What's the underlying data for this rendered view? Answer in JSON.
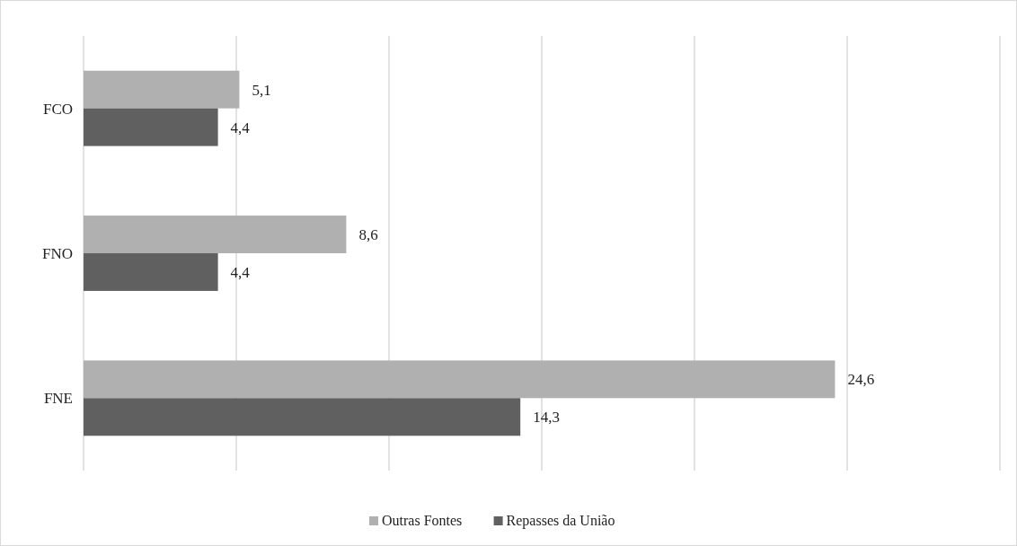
{
  "chart_data": {
    "type": "bar",
    "orientation": "horizontal",
    "categories": [
      "FCO",
      "FNO",
      "FNE"
    ],
    "series": [
      {
        "name": "Outras Fontes",
        "color": "#b0b0b0",
        "values": [
          5.1,
          8.6,
          24.6
        ],
        "value_labels": [
          "5,1",
          "8,6",
          "24,6"
        ]
      },
      {
        "name": "Repasses da União",
        "color": "#606060",
        "values": [
          4.4,
          4.4,
          14.3
        ],
        "value_labels": [
          "4,4",
          "4,4",
          "14,3"
        ]
      }
    ],
    "xlim": [
      0,
      30
    ],
    "xticks": [
      {
        "value": 0,
        "label": null
      },
      {
        "value": 5,
        "label": null
      },
      {
        "value": 10,
        "label": null
      },
      {
        "value": 15,
        "label": null
      },
      {
        "value": 20,
        "label": null
      },
      {
        "value": 25,
        "label": null
      },
      {
        "value": 30,
        "label": null
      }
    ],
    "tick_labels": "y",
    "grid": "x",
    "legend": "bottom"
  }
}
